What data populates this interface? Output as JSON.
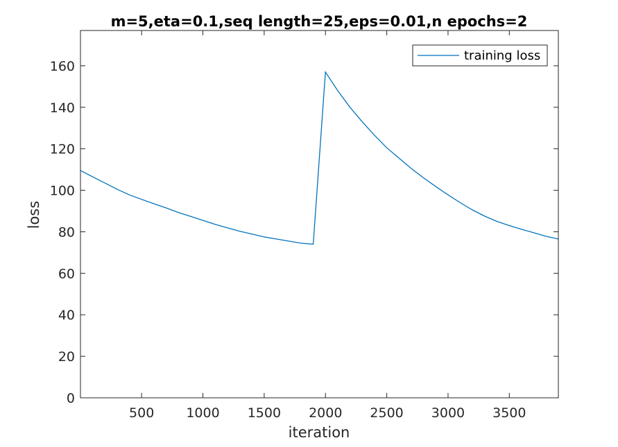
{
  "chart_data": {
    "type": "line",
    "title": "m=5,eta=0.1,seq length=25,eps=0.01,n epochs=2",
    "xlabel": "iteration",
    "ylabel": "loss",
    "xlim": [
      1,
      3900
    ],
    "ylim": [
      0,
      177
    ],
    "xticks": [
      500,
      1000,
      1500,
      2000,
      2500,
      3000,
      3500
    ],
    "yticks": [
      0,
      20,
      40,
      60,
      80,
      100,
      120,
      140,
      160
    ],
    "grid": false,
    "legend_position": "top-right",
    "series": [
      {
        "name": "training loss",
        "color": "#0072BD",
        "x": [
          1,
          100,
          200,
          300,
          400,
          500,
          600,
          700,
          800,
          900,
          1000,
          1100,
          1200,
          1300,
          1400,
          1500,
          1600,
          1700,
          1800,
          1900,
          2000,
          2100,
          2200,
          2300,
          2400,
          2500,
          2600,
          2700,
          2800,
          2900,
          3000,
          3100,
          3200,
          3300,
          3400,
          3500,
          3600,
          3700,
          3800,
          3900
        ],
        "y": [
          109.5,
          106.5,
          103.5,
          100.5,
          97.8,
          95.6,
          93.5,
          91.5,
          89.3,
          87.4,
          85.5,
          83.6,
          81.9,
          80.3,
          78.9,
          77.5,
          76.5,
          75.5,
          74.5,
          74.0,
          157.0,
          148.0,
          140.0,
          133.0,
          126.5,
          120.5,
          115.5,
          110.5,
          106.0,
          101.8,
          97.8,
          94.0,
          90.5,
          87.5,
          85.0,
          83.0,
          81.2,
          79.5,
          77.8,
          76.5
        ]
      }
    ]
  }
}
